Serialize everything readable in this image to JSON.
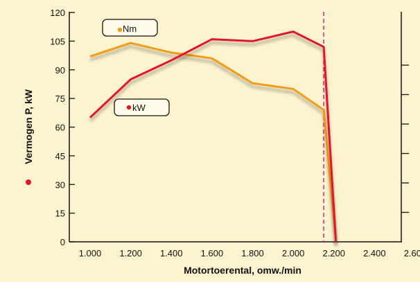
{
  "chart_data": {
    "type": "line",
    "xlabel": "Motortoerental, omw./min",
    "ylabel": "Vermogen P, kW",
    "x_ticks": [
      "1.000",
      "1.200",
      "1.400",
      "1.600",
      "1.800",
      "2.000",
      "2.200",
      "2.400",
      "2.600"
    ],
    "y_ticks": [
      "0",
      "15",
      "30",
      "45",
      "60",
      "75",
      "90",
      "105",
      "120"
    ],
    "xlim": [
      1000,
      2600
    ],
    "ylim": [
      0,
      120
    ],
    "grid": false,
    "series": [
      {
        "name": "Nm",
        "color": "#f29b16",
        "x": [
          1000,
          1200,
          1400,
          1600,
          1800,
          2000,
          2150,
          2210
        ],
        "y": [
          97,
          104,
          99,
          96,
          83,
          80,
          69,
          0
        ]
      },
      {
        "name": "kW",
        "color": "#e0162b",
        "x": [
          1000,
          1200,
          1400,
          1600,
          1800,
          2000,
          2150,
          2210
        ],
        "y": [
          65,
          85,
          95,
          106,
          105,
          110,
          102,
          0
        ]
      }
    ],
    "reference_line": {
      "x": 2150,
      "color": "#d6287f",
      "style": "dashed"
    },
    "legend_labels": {
      "nm": "Nm",
      "kw": "kW"
    },
    "colors": {
      "background": "#fdf3cf",
      "axis": "#111111",
      "nm": "#f29b16",
      "kw": "#e0162b"
    }
  }
}
